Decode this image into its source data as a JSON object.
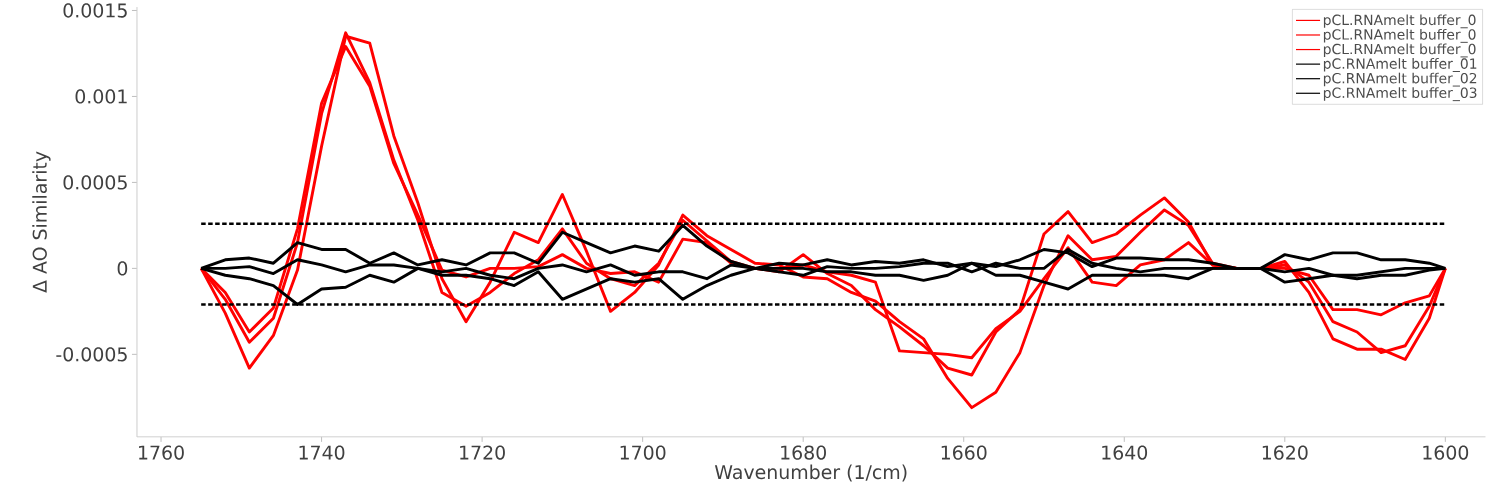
{
  "chart_data": {
    "type": "line",
    "xlabel": "Wavenumber (1/cm)",
    "ylabel": "Δ AO Similarity",
    "xlim": [
      1763,
      1595
    ],
    "ylim": [
      -0.00098,
      0.00152
    ],
    "xticks": [
      1760,
      1740,
      1720,
      1700,
      1680,
      1660,
      1640,
      1620,
      1600
    ],
    "yticks": [
      -0.0005,
      0,
      0.0005,
      0.001,
      0.0015
    ],
    "legend": "top right",
    "marker": "none",
    "line_style": "solid",
    "x": [
      1755,
      1752,
      1749,
      1746,
      1743,
      1740,
      1737,
      1734,
      1731,
      1728,
      1725,
      1722,
      1719,
      1716,
      1713,
      1710,
      1707,
      1704,
      1701,
      1698,
      1695,
      1692,
      1689,
      1686,
      1683,
      1680,
      1677,
      1674,
      1671,
      1668,
      1665,
      1662,
      1659,
      1656,
      1653,
      1650,
      1647,
      1644,
      1641,
      1638,
      1635,
      1632,
      1629,
      1626,
      1623,
      1620,
      1617,
      1614,
      1611,
      1608,
      1605,
      1602,
      1600
    ],
    "series": [
      {
        "name": "pCL.RNAmelt buffer_0",
        "color": "#ff0000",
        "values": [
          0,
          -0.00026,
          -0.00058,
          -0.00039,
          -1e-05,
          0.00071,
          0.00135,
          0.00131,
          0.00077,
          0.00038,
          -6e-05,
          -0.00031,
          -8e-05,
          0.00021,
          0.00015,
          0.00043,
          0.0001,
          -0.00025,
          -0.00014,
          2e-05,
          0.00031,
          0.00019,
          0.00011,
          3e-05,
          2e-05,
          -5e-05,
          -6e-05,
          -0.00014,
          -0.00019,
          -0.00031,
          -0.00041,
          -0.00064,
          -0.00081,
          -0.00072,
          -0.00049,
          -0.0001,
          0.00019,
          5e-05,
          7e-05,
          0.00021,
          0.00034,
          0.00025,
          3e-05,
          0,
          0,
          4e-05,
          -0.00014,
          -0.00041,
          -0.00047,
          -0.00047,
          -0.00053,
          -0.00029,
          0
        ]
      },
      {
        "name": "pCL.RNAmelt buffer_0",
        "color": "#ff0000",
        "values": [
          0,
          -0.00018,
          -0.00043,
          -0.00029,
          0.00015,
          0.0009,
          0.00137,
          0.00108,
          0.00063,
          0.00028,
          -0.00014,
          -0.00022,
          -0.00014,
          -3e-05,
          5e-05,
          0.00023,
          3e-05,
          -6e-05,
          -0.0001,
          3e-05,
          0.00028,
          0.00016,
          4e-05,
          0,
          -2e-05,
          8e-05,
          -3e-05,
          -0.0001,
          -0.00024,
          -0.00034,
          -0.00045,
          -0.00058,
          -0.00062,
          -0.00037,
          -0.00024,
          0.0002,
          0.00033,
          0.00015,
          0.0002,
          0.00031,
          0.00041,
          0.00027,
          2e-05,
          0,
          0,
          2e-05,
          -8e-05,
          -0.00031,
          -0.00037,
          -0.00049,
          -0.00045,
          -0.00022,
          0
        ]
      },
      {
        "name": "pCL.RNAmelt buffer_0",
        "color": "#ff0000",
        "values": [
          0,
          -0.00014,
          -0.00037,
          -0.00023,
          0.00023,
          0.00096,
          0.00129,
          0.00106,
          0.00061,
          0.00031,
          -1e-05,
          -5e-05,
          0,
          0,
          1e-05,
          8e-05,
          0,
          -3e-05,
          -2e-05,
          -8e-05,
          0.00017,
          0.00015,
          3e-05,
          0,
          0,
          2e-05,
          -2e-05,
          -4e-05,
          -8e-05,
          -0.00048,
          -0.00049,
          -0.0005,
          -0.00052,
          -0.00035,
          -0.00025,
          -6e-05,
          0.00012,
          -8e-05,
          -0.0001,
          2e-05,
          5e-05,
          0.00015,
          2e-05,
          0,
          0,
          0,
          -4e-05,
          -0.00024,
          -0.00024,
          -0.00027,
          -0.0002,
          -0.00016,
          0
        ]
      },
      {
        "name": "pC.RNAmelt buffer_01",
        "color": "#000000",
        "values": [
          0,
          5e-05,
          6e-05,
          3e-05,
          0.00015,
          0.00011,
          0.00011,
          3e-05,
          9e-05,
          2e-05,
          5e-05,
          2e-05,
          9e-05,
          9e-05,
          3e-05,
          0.00021,
          0.00015,
          9e-05,
          0.00013,
          0.0001,
          0.00025,
          0.00013,
          4e-05,
          0,
          3e-05,
          2e-05,
          5e-05,
          2e-05,
          4e-05,
          3e-05,
          5e-05,
          1e-05,
          3e-05,
          1e-05,
          5e-05,
          0.00011,
          9e-05,
          1e-05,
          6e-05,
          6e-05,
          5e-05,
          5e-05,
          3e-05,
          0,
          0,
          8e-05,
          5e-05,
          9e-05,
          9e-05,
          5e-05,
          5e-05,
          3e-05,
          0
        ]
      },
      {
        "name": "pC.RNAmelt buffer_02",
        "color": "#000000",
        "values": [
          0,
          0,
          1e-05,
          -3e-05,
          5e-05,
          2e-05,
          -2e-05,
          2e-05,
          2e-05,
          0,
          -2e-05,
          0,
          -4e-05,
          -6e-05,
          0,
          2e-05,
          -2e-05,
          2e-05,
          -4e-05,
          -2e-05,
          -2e-05,
          -6e-05,
          2e-05,
          0,
          -2e-05,
          -4e-05,
          1e-05,
          0,
          0,
          1e-05,
          3e-05,
          3e-05,
          -2e-05,
          3e-05,
          0,
          0,
          0.00011,
          3e-05,
          0,
          -2e-05,
          0,
          0,
          0,
          0,
          0,
          -2e-05,
          0,
          -4e-05,
          -4e-05,
          -2e-05,
          0,
          0,
          0
        ]
      },
      {
        "name": "pC.RNAmelt buffer_03",
        "color": "#000000",
        "values": [
          0,
          -4e-05,
          -6e-05,
          -0.0001,
          -0.00021,
          -0.00012,
          -0.00011,
          -4e-05,
          -8e-05,
          0,
          -4e-05,
          -4e-05,
          -6e-05,
          -0.0001,
          -2e-05,
          -0.00018,
          -0.00012,
          -6e-05,
          -8e-05,
          -6e-05,
          -0.00018,
          -0.0001,
          -4e-05,
          0,
          0,
          0,
          -2e-05,
          -2e-05,
          -4e-05,
          -4e-05,
          -7e-05,
          -4e-05,
          3e-05,
          -4e-05,
          -4e-05,
          -8e-05,
          -0.00012,
          -4e-05,
          -4e-05,
          -4e-05,
          -4e-05,
          -6e-05,
          0,
          0,
          0,
          -8e-05,
          -6e-05,
          -4e-05,
          -6e-05,
          -4e-05,
          -4e-05,
          -1e-05,
          0
        ]
      }
    ],
    "ref_lines": [
      {
        "axis": "y",
        "value": 0.00026,
        "color": "#000000",
        "line_style": "dashed"
      },
      {
        "axis": "y",
        "value": -0.00021,
        "color": "#000000",
        "line_style": "dashed"
      }
    ]
  }
}
